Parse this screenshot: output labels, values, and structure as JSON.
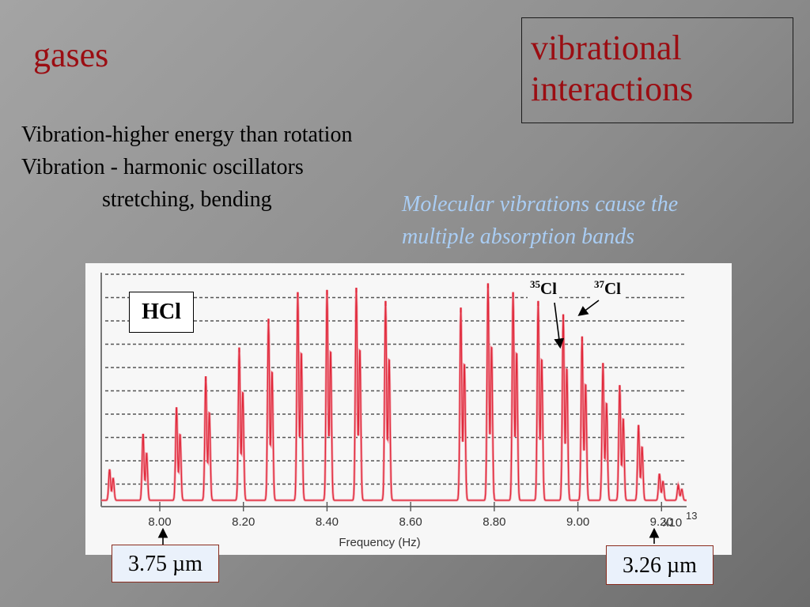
{
  "slide": {
    "title": "gases",
    "topic_line1": "vibrational",
    "topic_line2": "interactions",
    "bullets": [
      "Vibration-higher energy than rotation",
      "Vibration - harmonic oscillators",
      "stretching, bending"
    ],
    "caption_line1": "Molecular vibrations cause the",
    "caption_line2": "multiple absorption bands"
  },
  "chart_data": {
    "type": "line",
    "molecule_label": "HCl",
    "isotope_labels": [
      {
        "mass": "35",
        "symbol": "Cl"
      },
      {
        "mass": "37",
        "symbol": "Cl"
      }
    ],
    "xlabel": "Frequency (Hz)",
    "x_multiplier": "x10",
    "x_exponent": "13",
    "x_ticks": [
      "8.00",
      "8.20",
      "8.40",
      "8.60",
      "8.80",
      "9.00",
      "9.20"
    ],
    "x_tick_values": [
      8.0,
      8.2,
      8.4,
      8.6,
      8.8,
      9.0,
      9.2
    ],
    "xlim": [
      7.86,
      9.26
    ],
    "ylim": [
      0,
      1
    ],
    "grid": "dashed horizontal",
    "line_color": "#e0283a",
    "peak_pairs": [
      {
        "x": 7.88,
        "y": 0.14
      },
      {
        "x": 7.96,
        "y": 0.3
      },
      {
        "x": 8.04,
        "y": 0.42
      },
      {
        "x": 8.11,
        "y": 0.56
      },
      {
        "x": 8.19,
        "y": 0.69
      },
      {
        "x": 8.26,
        "y": 0.82
      },
      {
        "x": 8.33,
        "y": 0.94
      },
      {
        "x": 8.4,
        "y": 0.95
      },
      {
        "x": 8.47,
        "y": 0.96
      },
      {
        "x": 8.54,
        "y": 0.9
      },
      {
        "x": 8.72,
        "y": 0.87
      },
      {
        "x": 8.785,
        "y": 0.98
      },
      {
        "x": 8.845,
        "y": 0.94
      },
      {
        "x": 8.905,
        "y": 0.9
      },
      {
        "x": 8.965,
        "y": 0.84
      },
      {
        "x": 9.01,
        "y": 0.74
      },
      {
        "x": 9.06,
        "y": 0.62
      },
      {
        "x": 9.1,
        "y": 0.52
      },
      {
        "x": 9.145,
        "y": 0.34
      },
      {
        "x": 9.195,
        "y": 0.12
      },
      {
        "x": 9.24,
        "y": 0.07
      }
    ]
  },
  "wavelength_markers": {
    "left": "3.75 µm",
    "right": "3.26 µm"
  }
}
